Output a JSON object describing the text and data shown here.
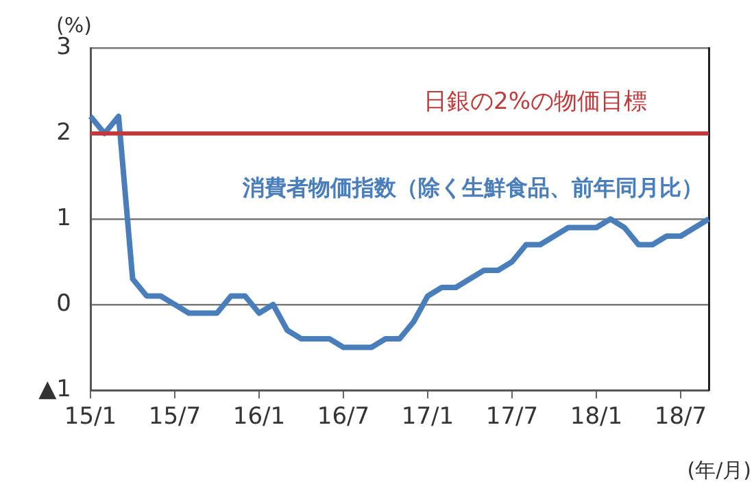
{
  "chart_data": {
    "type": "line",
    "ylabel": "(%)",
    "xlabel": "(年/月)",
    "categories": [
      "15/1",
      null,
      null,
      null,
      null,
      null,
      "15/7",
      null,
      null,
      null,
      null,
      null,
      "16/1",
      null,
      null,
      null,
      null,
      null,
      "16/7",
      null,
      null,
      null,
      null,
      null,
      "17/1",
      null,
      null,
      null,
      null,
      null,
      "17/7",
      null,
      null,
      null,
      null,
      null,
      "18/1",
      null,
      null,
      null,
      null,
      null,
      "18/7",
      null,
      null
    ],
    "series": [
      {
        "name": "消費者物価指数（除く生鮮食品、前年同月比）",
        "color": "#4a7ebb",
        "values": [
          2.2,
          2.0,
          2.2,
          0.3,
          0.1,
          0.1,
          0.0,
          -0.1,
          -0.1,
          -0.1,
          0.1,
          0.1,
          -0.1,
          0.0,
          -0.3,
          -0.4,
          -0.4,
          -0.4,
          -0.5,
          -0.5,
          -0.5,
          -0.4,
          -0.4,
          -0.2,
          0.1,
          0.2,
          0.2,
          0.3,
          0.4,
          0.4,
          0.5,
          0.7,
          0.7,
          0.8,
          0.9,
          0.9,
          0.9,
          1.0,
          0.9,
          0.7,
          0.7,
          0.8,
          0.8,
          0.9,
          1.0
        ]
      }
    ],
    "ylim": [
      -1,
      3
    ],
    "yticks": [
      {
        "value": -1,
        "label": "▲1"
      },
      0,
      1,
      2,
      3
    ],
    "ref_lines": [
      {
        "axis": "y",
        "value": 2,
        "label": "日銀の2%の物価目標",
        "color": "#c0393b"
      }
    ],
    "grid": "y",
    "legend": false,
    "marker": "none",
    "line_style": "solid"
  }
}
